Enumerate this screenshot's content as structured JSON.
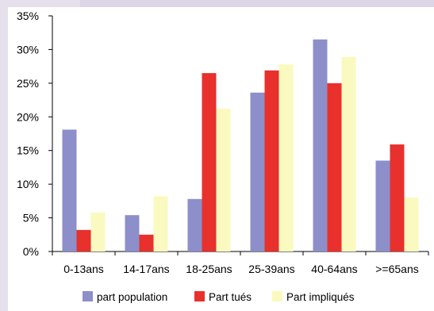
{
  "chart_data": {
    "type": "bar",
    "title": "",
    "xlabel": "",
    "ylabel": "",
    "ylim": [
      0,
      35
    ],
    "yticks": [
      "0%",
      "5%",
      "10%",
      "15%",
      "20%",
      "25%",
      "30%",
      "35%"
    ],
    "ytick_values": [
      0,
      5,
      10,
      15,
      20,
      25,
      30,
      35
    ],
    "categories": [
      "0-13ans",
      "14-17ans",
      "18-25ans",
      "25-39ans",
      "40-64ans",
      ">=65ans"
    ],
    "series": [
      {
        "name": "part population",
        "color": "#8c8fca",
        "values": [
          18.1,
          5.4,
          7.8,
          23.6,
          31.5,
          13.5
        ]
      },
      {
        "name": "Part tués",
        "color": "#e8302c",
        "values": [
          3.2,
          2.5,
          26.5,
          26.9,
          25.0,
          15.9
        ]
      },
      {
        "name": "Part impliqués",
        "color": "#fafac0",
        "values": [
          5.8,
          8.2,
          21.2,
          27.8,
          28.9,
          8.0
        ]
      }
    ],
    "grid": false,
    "legend_position": "bottom"
  }
}
